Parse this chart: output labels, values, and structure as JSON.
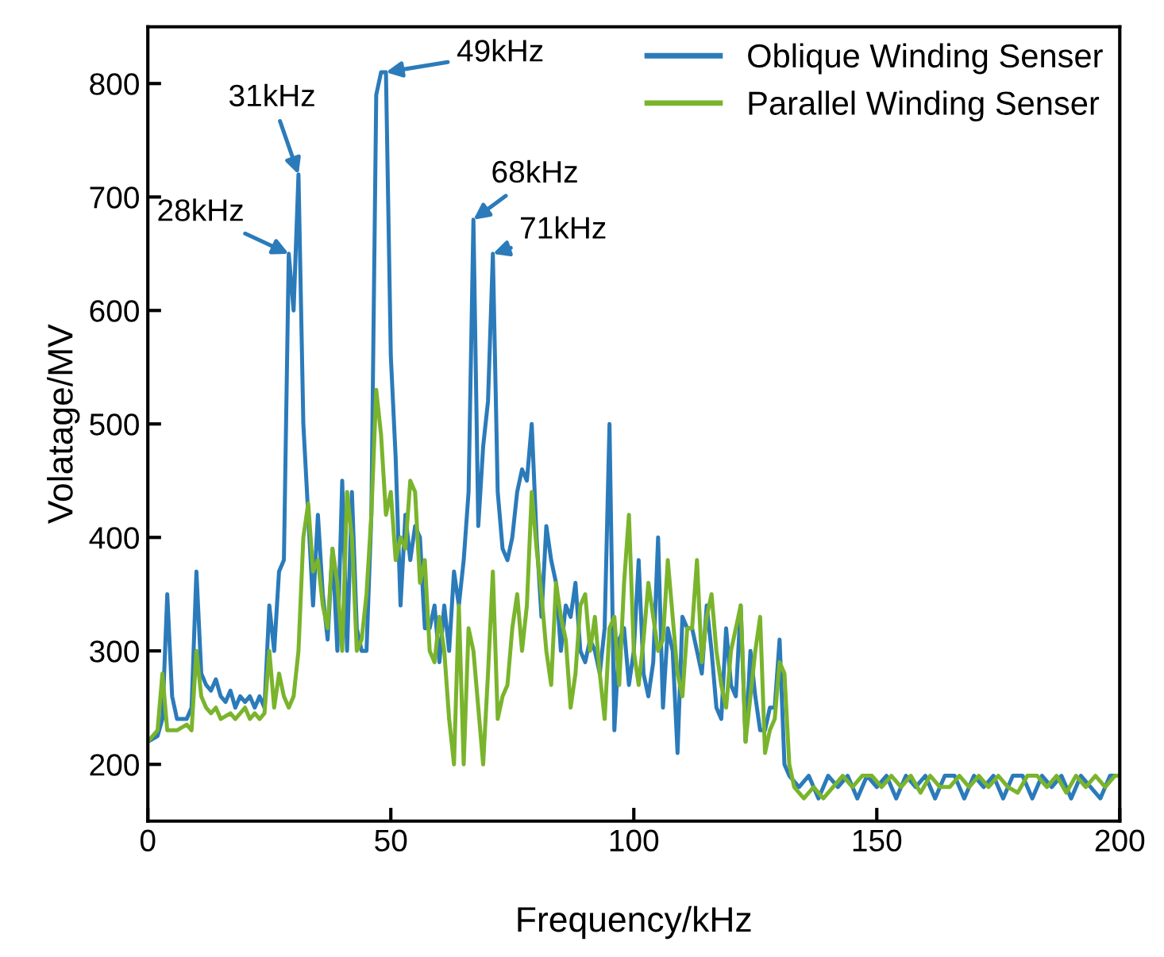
{
  "chart_data": {
    "type": "line",
    "xlabel": "Frequency/kHz",
    "ylabel": "Volatage/MV",
    "xlim": [
      0,
      200
    ],
    "xticks": [
      0,
      50,
      100,
      150,
      200
    ],
    "ylim": [
      150,
      850
    ],
    "yticks": [
      200,
      300,
      400,
      500,
      600,
      700,
      800
    ],
    "grid": false,
    "legend": "top right",
    "marker": "none",
    "line_style": "solid",
    "annotations": [
      {
        "text": "28kHz",
        "x": 29,
        "y": 650
      },
      {
        "text": "31kHz",
        "x": 31,
        "y": 720
      },
      {
        "text": "49kHz",
        "x": 49,
        "y": 810
      },
      {
        "text": "68kHz",
        "x": 67,
        "y": 680
      },
      {
        "text": "71kHz",
        "x": 71,
        "y": 650
      }
    ],
    "series": [
      {
        "name": "Oblique Winding Senser",
        "color": "#2b7bba",
        "x": [
          0,
          2,
          3,
          4,
          5,
          6,
          8,
          9,
          10,
          11,
          12,
          13,
          14,
          15,
          16,
          17,
          18,
          19,
          20,
          21,
          22,
          23,
          24,
          25,
          26,
          27,
          28,
          29,
          30,
          31,
          32,
          33,
          34,
          35,
          36,
          37,
          38,
          39,
          40,
          41,
          42,
          43,
          44,
          45,
          46,
          47,
          48,
          49,
          50,
          51,
          52,
          53,
          54,
          55,
          56,
          57,
          58,
          59,
          60,
          61,
          62,
          63,
          64,
          65,
          66,
          67,
          68,
          69,
          70,
          71,
          72,
          73,
          74,
          75,
          76,
          77,
          78,
          79,
          80,
          81,
          82,
          83,
          84,
          85,
          86,
          87,
          88,
          89,
          90,
          91,
          92,
          93,
          94,
          95,
          96,
          97,
          98,
          99,
          100,
          101,
          102,
          103,
          104,
          105,
          106,
          107,
          108,
          109,
          110,
          111,
          112,
          113,
          114,
          115,
          116,
          117,
          118,
          119,
          120,
          121,
          122,
          123,
          124,
          125,
          126,
          127,
          128,
          129,
          130,
          131,
          132,
          134,
          136,
          138,
          140,
          142,
          144,
          146,
          148,
          150,
          152,
          154,
          156,
          158,
          160,
          162,
          164,
          166,
          168,
          170,
          172,
          174,
          176,
          178,
          180,
          182,
          184,
          186,
          188,
          190,
          192,
          194,
          196,
          198,
          200
        ],
        "values": [
          220,
          225,
          240,
          350,
          260,
          240,
          240,
          250,
          370,
          280,
          270,
          265,
          275,
          260,
          255,
          265,
          250,
          260,
          255,
          260,
          250,
          260,
          250,
          340,
          300,
          370,
          380,
          650,
          600,
          720,
          500,
          420,
          340,
          420,
          350,
          310,
          390,
          300,
          450,
          300,
          440,
          320,
          300,
          300,
          420,
          790,
          810,
          810,
          560,
          470,
          340,
          420,
          380,
          410,
          400,
          320,
          320,
          340,
          290,
          340,
          300,
          370,
          340,
          380,
          440,
          680,
          410,
          480,
          520,
          650,
          440,
          390,
          380,
          400,
          440,
          460,
          450,
          500,
          400,
          330,
          410,
          380,
          360,
          300,
          340,
          330,
          360,
          300,
          290,
          310,
          300,
          280,
          320,
          500,
          230,
          310,
          320,
          270,
          300,
          380,
          280,
          260,
          290,
          400,
          250,
          320,
          300,
          210,
          330,
          320,
          320,
          300,
          280,
          340,
          300,
          250,
          240,
          320,
          270,
          260,
          340,
          220,
          300,
          260,
          230,
          230,
          250,
          250,
          310,
          200,
          190,
          180,
          190,
          170,
          190,
          180,
          190,
          170,
          190,
          180,
          190,
          170,
          190,
          180,
          190,
          170,
          190,
          190,
          170,
          190,
          180,
          190,
          170,
          190,
          190,
          170,
          190,
          180,
          190,
          170,
          190,
          180,
          170,
          190,
          190
        ]
      },
      {
        "name": "Parallel Winding Senser",
        "color": "#7ab42c",
        "x": [
          0,
          2,
          3,
          4,
          6,
          8,
          9,
          10,
          11,
          12,
          13,
          14,
          15,
          17,
          18,
          20,
          21,
          22,
          23,
          24,
          25,
          26,
          27,
          28,
          29,
          30,
          31,
          32,
          33,
          34,
          35,
          36,
          37,
          38,
          39,
          40,
          41,
          42,
          43,
          44,
          45,
          46,
          47,
          48,
          49,
          50,
          51,
          52,
          53,
          54,
          55,
          56,
          57,
          58,
          59,
          60,
          61,
          62,
          63,
          64,
          65,
          66,
          67,
          68,
          69,
          70,
          71,
          72,
          73,
          74,
          75,
          76,
          77,
          78,
          79,
          80,
          81,
          82,
          83,
          84,
          85,
          86,
          87,
          88,
          89,
          90,
          91,
          92,
          93,
          94,
          95,
          96,
          97,
          98,
          99,
          100,
          101,
          102,
          103,
          104,
          105,
          106,
          107,
          108,
          109,
          110,
          111,
          112,
          113,
          114,
          115,
          116,
          117,
          118,
          119,
          120,
          121,
          122,
          123,
          124,
          125,
          126,
          127,
          128,
          129,
          130,
          131,
          132,
          133,
          135,
          137,
          139,
          141,
          143,
          145,
          147,
          149,
          151,
          153,
          155,
          157,
          159,
          161,
          163,
          165,
          167,
          169,
          171,
          173,
          175,
          177,
          179,
          181,
          183,
          185,
          187,
          189,
          191,
          193,
          195,
          197,
          199,
          200
        ],
        "values": [
          220,
          230,
          280,
          230,
          230,
          235,
          230,
          300,
          260,
          250,
          245,
          250,
          240,
          245,
          240,
          250,
          240,
          245,
          240,
          245,
          300,
          250,
          280,
          260,
          250,
          260,
          300,
          400,
          430,
          370,
          380,
          340,
          320,
          390,
          360,
          300,
          440,
          400,
          300,
          310,
          350,
          420,
          530,
          490,
          420,
          440,
          380,
          400,
          390,
          450,
          440,
          360,
          380,
          300,
          290,
          330,
          300,
          240,
          200,
          340,
          200,
          320,
          300,
          250,
          200,
          280,
          370,
          240,
          260,
          270,
          320,
          350,
          300,
          340,
          440,
          390,
          350,
          300,
          270,
          360,
          330,
          310,
          250,
          280,
          340,
          350,
          300,
          330,
          280,
          240,
          320,
          330,
          270,
          360,
          420,
          300,
          270,
          310,
          360,
          330,
          300,
          310,
          380,
          330,
          280,
          260,
          320,
          320,
          380,
          290,
          330,
          350,
          300,
          270,
          250,
          300,
          320,
          340,
          220,
          260,
          300,
          330,
          210,
          230,
          240,
          290,
          280,
          200,
          180,
          170,
          180,
          170,
          180,
          190,
          180,
          190,
          190,
          180,
          190,
          180,
          190,
          175,
          190,
          180,
          180,
          190,
          180,
          190,
          180,
          190,
          180,
          175,
          190,
          190,
          180,
          190,
          175,
          190,
          180,
          190,
          180,
          190,
          190
        ]
      }
    ]
  }
}
